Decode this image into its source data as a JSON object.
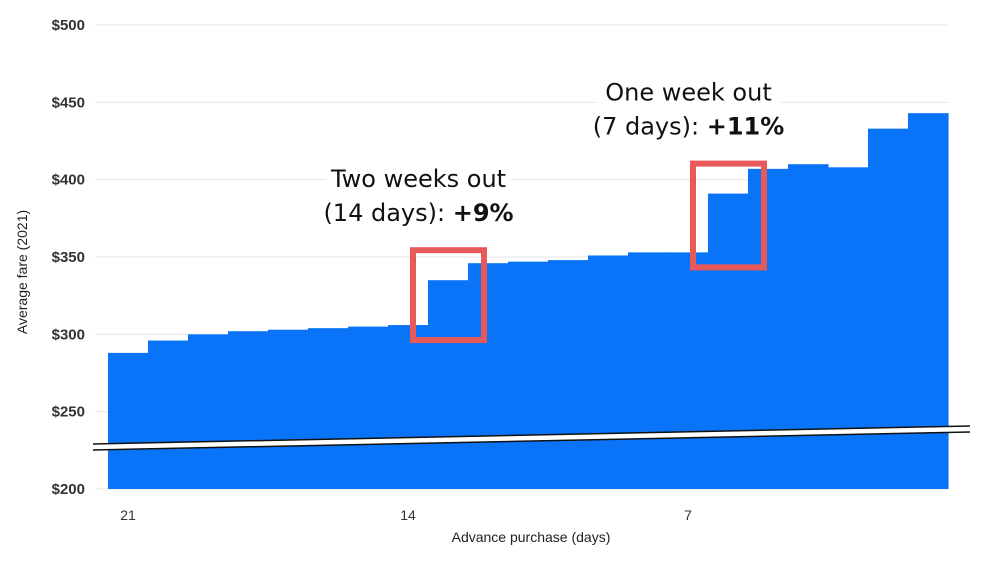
{
  "chart_data": {
    "type": "area",
    "xlabel": "Advance purchase (days)",
    "ylabel": "Average fare (2021)",
    "ylim": [
      200,
      500
    ],
    "yticks": [
      "$200",
      "$250",
      "$300",
      "$350",
      "$400",
      "$450",
      "$500"
    ],
    "xticks": [
      {
        "label": "21",
        "day": 21
      },
      {
        "label": "14",
        "day": 14
      },
      {
        "label": "7",
        "day": 7
      }
    ],
    "x": [
      21,
      20,
      19,
      18,
      17,
      16,
      15,
      14,
      13,
      12,
      11,
      10,
      9,
      8,
      7,
      6,
      5,
      4,
      3,
      2,
      1
    ],
    "values": [
      288,
      296,
      300,
      302,
      303,
      304,
      305,
      306,
      335,
      346,
      347,
      348,
      351,
      353,
      353,
      391,
      407,
      410,
      408,
      433,
      443
    ],
    "color": "#0a74f8",
    "axis_break": true,
    "grid": true,
    "annotations": [
      {
        "line1": "Two weeks out",
        "line2_prefix": "(14 days): ",
        "line2_bold": "+9%",
        "day_from": 14,
        "day_to": 13
      },
      {
        "line1": "One week out",
        "line2_prefix": "(7 days): ",
        "line2_bold": "+11%",
        "day_from": 7,
        "day_to": 6
      }
    ],
    "highlight_color": "#e85a5a"
  }
}
